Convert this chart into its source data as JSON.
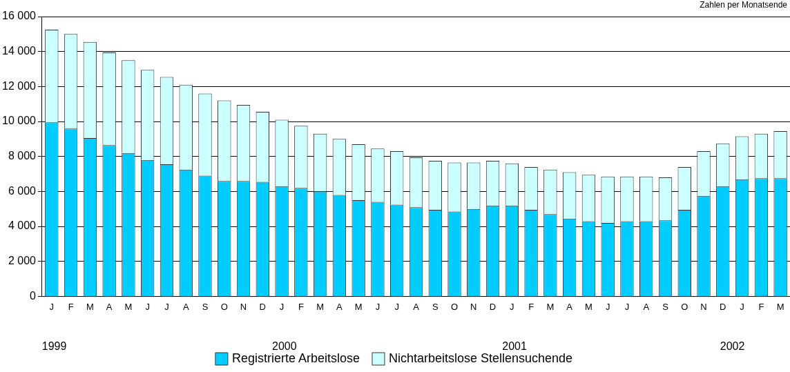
{
  "chart_data": {
    "type": "bar",
    "stacked": true,
    "subtitle": "Zahlen per Monatsende",
    "categories": [
      "J",
      "F",
      "M",
      "A",
      "M",
      "J",
      "J",
      "A",
      "S",
      "O",
      "N",
      "D",
      "J",
      "F",
      "M",
      "A",
      "M",
      "J",
      "J",
      "A",
      "S",
      "O",
      "N",
      "D",
      "J",
      "F",
      "M",
      "A",
      "M",
      "J",
      "J",
      "A",
      "S",
      "O",
      "N",
      "D",
      "J",
      "F",
      "M"
    ],
    "series": [
      {
        "name": "Registrierte Arbeitslose",
        "color": "#00ccff",
        "values": [
          9950,
          9600,
          9050,
          8650,
          8200,
          7800,
          7550,
          7250,
          6900,
          6600,
          6600,
          6550,
          6300,
          6200,
          6000,
          5800,
          5500,
          5400,
          5250,
          5100,
          4950,
          4850,
          5000,
          5200,
          5200,
          4950,
          4700,
          4450,
          4300,
          4200,
          4300,
          4300,
          4350,
          4950,
          5750,
          6300,
          6700,
          6750,
          6750
        ]
      },
      {
        "name": "Nichtarbeitslose Stellensuchende",
        "color": "#ccffff",
        "values": [
          5300,
          5400,
          5500,
          5300,
          5300,
          5150,
          5000,
          4850,
          4700,
          4600,
          4350,
          4000,
          3800,
          3550,
          3300,
          3200,
          3200,
          3050,
          3050,
          2850,
          2800,
          2800,
          2650,
          2550,
          2400,
          2450,
          2550,
          2650,
          2650,
          2650,
          2550,
          2550,
          2450,
          2450,
          2550,
          2450,
          2450,
          2550,
          2700
        ]
      }
    ],
    "ylim": [
      0,
      16000
    ],
    "yticks": [
      {
        "value": 0,
        "label": "0"
      },
      {
        "value": 2000,
        "label": "2 000"
      },
      {
        "value": 4000,
        "label": "4 000"
      },
      {
        "value": 6000,
        "label": "6 000"
      },
      {
        "value": 8000,
        "label": "8 000"
      },
      {
        "value": 10000,
        "label": "10 000"
      },
      {
        "value": 12000,
        "label": "12 000"
      },
      {
        "value": 14000,
        "label": "14 000"
      },
      {
        "value": 16000,
        "label": "16 000"
      }
    ],
    "grid": "y",
    "legend": "bottom",
    "annotations": [
      "1999",
      "2000",
      "2001",
      "2002"
    ]
  }
}
